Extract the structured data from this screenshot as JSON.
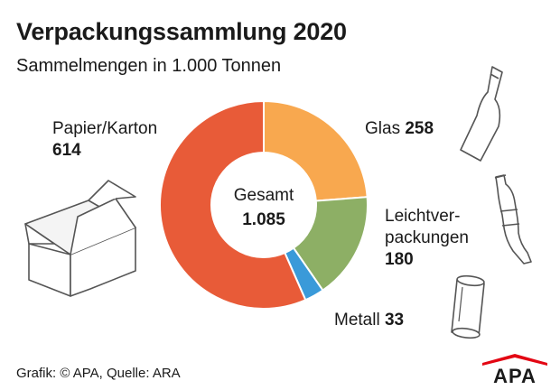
{
  "header": {
    "title": "Verpackungssammlung 2020",
    "subtitle": "Sammelmengen in 1.000 Tonnen"
  },
  "chart_data": {
    "type": "pie",
    "variant": "donut",
    "title": "Verpackungssammlung 2020",
    "subtitle": "Sammelmengen in 1.000 Tonnen",
    "center_label": "Gesamt",
    "total": 1085,
    "total_label": "1.085",
    "series": [
      {
        "name": "Glas",
        "value": 258,
        "value_label": "258",
        "color": "#F8A84F"
      },
      {
        "name": "Leichtverpackungen",
        "value": 180,
        "value_label": "180",
        "color": "#8DAF65",
        "display": [
          "Leichtver-",
          "packungen"
        ]
      },
      {
        "name": "Metall",
        "value": 33,
        "value_label": "33",
        "color": "#3A9AD9"
      },
      {
        "name": "Papier/Karton",
        "value": 614,
        "value_label": "614",
        "color": "#E85B38"
      }
    ]
  },
  "footer": {
    "source": "Grafik: © APA, Quelle: ARA",
    "logo_text": "APA"
  },
  "icons": [
    "box-icon",
    "bottle-icon",
    "plastic-bottle-icon",
    "can-icon"
  ]
}
